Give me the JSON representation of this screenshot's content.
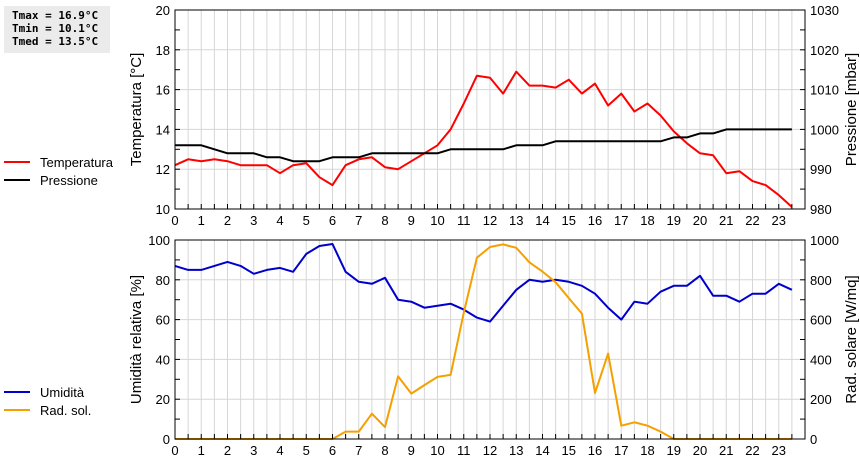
{
  "stats": {
    "tmax": "Tmax = 16.9°C",
    "tmin": "Tmin = 10.1°C",
    "tmed": "Tmed = 13.5°C"
  },
  "legend_top": [
    {
      "label": "Temperatura",
      "color": "#ff0000"
    },
    {
      "label": "Pressione",
      "color": "#000000"
    }
  ],
  "legend_bottom": [
    {
      "label": "Umidità",
      "color": "#0000cc"
    },
    {
      "label": "Rad. sol.",
      "color": "#f5a000"
    }
  ],
  "chart_data": [
    {
      "type": "line",
      "title": "",
      "xlabel": "",
      "x_ticks": [
        0,
        1,
        2,
        3,
        4,
        5,
        6,
        7,
        8,
        9,
        10,
        11,
        12,
        13,
        14,
        15,
        16,
        17,
        18,
        19,
        20,
        21,
        22,
        23
      ],
      "x": [
        0,
        0.5,
        1,
        1.5,
        2,
        2.5,
        3,
        3.5,
        4,
        4.5,
        5,
        5.5,
        6,
        6.5,
        7,
        7.5,
        8,
        8.5,
        9,
        9.5,
        10,
        10.5,
        11,
        11.5,
        12,
        12.5,
        13,
        13.5,
        14,
        14.5,
        15,
        15.5,
        16,
        16.5,
        17,
        17.5,
        18,
        18.5,
        19,
        19.5,
        20,
        20.5,
        21,
        21.5,
        22,
        22.5,
        23,
        23.5
      ],
      "xlim": [
        0,
        24
      ],
      "grid": true,
      "ylabel": "Temperatura [°C]",
      "ylim": [
        10,
        20
      ],
      "y_ticks": [
        10,
        12,
        14,
        16,
        18,
        20
      ],
      "y2label": "Pressione [mbar]",
      "y2lim": [
        980,
        1030
      ],
      "y2_ticks": [
        980,
        990,
        1000,
        1010,
        1020,
        1030
      ],
      "series": [
        {
          "name": "Temperatura",
          "axis": "left",
          "color": "#ff0000",
          "values": [
            12.2,
            12.5,
            12.4,
            12.5,
            12.4,
            12.2,
            12.2,
            12.2,
            11.8,
            12.2,
            12.3,
            11.6,
            11.2,
            12.2,
            12.5,
            12.6,
            12.1,
            12.0,
            12.4,
            12.8,
            13.2,
            14.0,
            15.3,
            16.7,
            16.6,
            15.8,
            16.9,
            16.2,
            16.2,
            16.1,
            16.5,
            15.8,
            16.3,
            15.2,
            15.8,
            14.9,
            15.3,
            14.7,
            13.9,
            13.3,
            12.8,
            12.7,
            11.8,
            11.9,
            11.4,
            11.2,
            10.7,
            10.1
          ]
        },
        {
          "name": "Pressione",
          "axis": "right",
          "color": "#000000",
          "values": [
            996,
            996,
            996,
            995,
            994,
            994,
            994,
            993,
            993,
            992,
            992,
            992,
            993,
            993,
            993,
            994,
            994,
            994,
            994,
            994,
            994,
            995,
            995,
            995,
            995,
            995,
            996,
            996,
            996,
            997,
            997,
            997,
            997,
            997,
            997,
            997,
            997,
            997,
            998,
            998,
            999,
            999,
            1000,
            1000,
            1000,
            1000,
            1000,
            1000
          ]
        }
      ]
    },
    {
      "type": "line",
      "title": "",
      "xlabel": "",
      "x_ticks": [
        0,
        1,
        2,
        3,
        4,
        5,
        6,
        7,
        8,
        9,
        10,
        11,
        12,
        13,
        14,
        15,
        16,
        17,
        18,
        19,
        20,
        21,
        22,
        23
      ],
      "x": [
        0,
        0.5,
        1,
        1.5,
        2,
        2.5,
        3,
        3.5,
        4,
        4.5,
        5,
        5.5,
        6,
        6.5,
        7,
        7.5,
        8,
        8.5,
        9,
        9.5,
        10,
        10.5,
        11,
        11.5,
        12,
        12.5,
        13,
        13.5,
        14,
        14.5,
        15,
        15.5,
        16,
        16.5,
        17,
        17.5,
        18,
        18.5,
        19,
        19.5,
        20,
        20.5,
        21,
        21.5,
        22,
        22.5,
        23,
        23.5
      ],
      "xlim": [
        0,
        24
      ],
      "grid": true,
      "ylabel": "Umidità relativa [%]",
      "ylim": [
        0,
        100
      ],
      "y_ticks": [
        0,
        20,
        40,
        60,
        80,
        100
      ],
      "y2label": "Rad. solare [W/mq]",
      "y2lim": [
        0,
        1000
      ],
      "y2_ticks": [
        0,
        200,
        400,
        600,
        800,
        1000
      ],
      "series": [
        {
          "name": "Umidità",
          "axis": "left",
          "color": "#0000cc",
          "values": [
            87,
            85,
            85,
            87,
            89,
            87,
            83,
            85,
            86,
            84,
            93,
            97,
            98,
            84,
            79,
            78,
            81,
            70,
            69,
            66,
            67,
            68,
            65,
            61,
            59,
            67,
            75,
            80,
            79,
            80,
            79,
            77,
            73,
            66,
            60,
            69,
            68,
            74,
            77,
            77,
            82,
            72,
            72,
            69,
            73,
            73,
            78,
            75
          ]
        },
        {
          "name": "Rad. sol.",
          "axis": "right",
          "color": "#f5a000",
          "values": [
            0,
            0,
            0,
            0,
            0,
            0,
            0,
            0,
            0,
            0,
            0,
            0,
            0,
            37,
            37,
            127,
            60,
            315,
            228,
            271,
            312,
            322,
            635,
            911,
            965,
            978,
            961,
            888,
            841,
            788,
            708,
            630,
            231,
            429,
            67,
            84,
            67,
            37,
            0,
            0,
            0,
            0,
            0,
            0,
            0,
            0,
            0,
            0
          ]
        }
      ]
    }
  ]
}
